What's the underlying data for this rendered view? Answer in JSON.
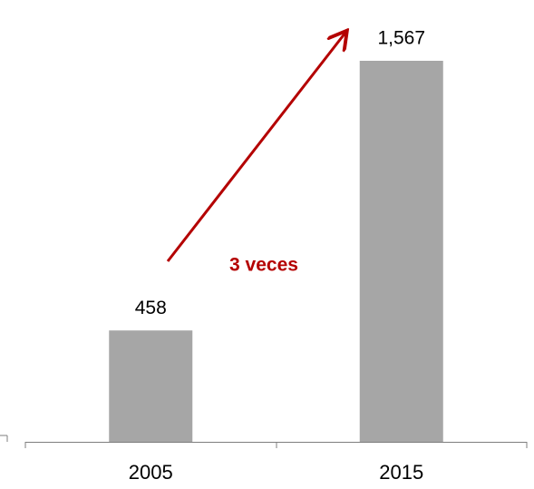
{
  "chart_data": {
    "type": "bar",
    "categories": [
      "2005",
      "2015"
    ],
    "values": [
      458,
      1567
    ],
    "value_labels": [
      "458",
      "1,567"
    ],
    "color": "#a6a6a6",
    "annotation": "3 veces",
    "annotation_color": "#b40000"
  }
}
